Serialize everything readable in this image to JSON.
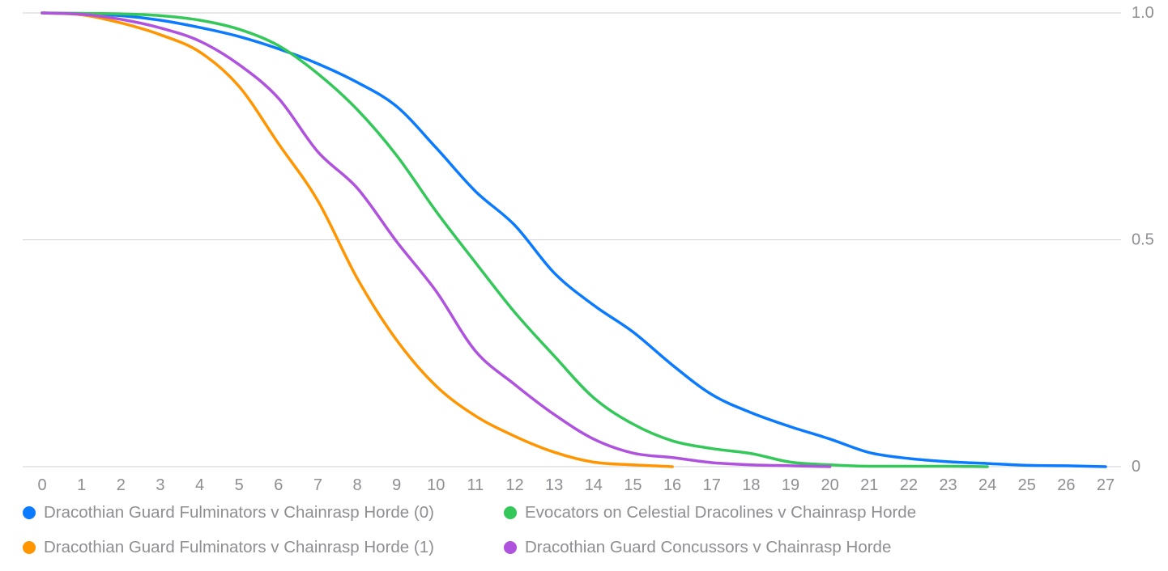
{
  "chart_data": {
    "type": "line",
    "title": "",
    "xlabel": "",
    "ylabel": "",
    "xlim": [
      0,
      27
    ],
    "ylim": [
      0,
      1
    ],
    "x_ticks": [
      "0",
      "1",
      "2",
      "3",
      "4",
      "5",
      "6",
      "7",
      "8",
      "9",
      "10",
      "11",
      "12",
      "13",
      "14",
      "15",
      "16",
      "17",
      "18",
      "19",
      "20",
      "21",
      "22",
      "23",
      "24",
      "25",
      "26",
      "27"
    ],
    "y_ticks": [
      {
        "value": 1.0,
        "label": "1.0"
      },
      {
        "value": 0.5,
        "label": "0.5"
      },
      {
        "value": 0.0,
        "label": "0"
      }
    ],
    "grid": "horizontal",
    "legend_position": "bottom",
    "series": [
      {
        "name": "Dracothian Guard Fulminators v Chainrasp Horde (0)",
        "color": "#0a7aff",
        "x": [
          0,
          1,
          2,
          3,
          4,
          5,
          6,
          7,
          8,
          9,
          10,
          11,
          12,
          13,
          14,
          15,
          16,
          17,
          18,
          19,
          20,
          21,
          22,
          23,
          24,
          25,
          26,
          27
        ],
        "y": [
          1.0,
          0.998,
          0.994,
          0.984,
          0.968,
          0.948,
          0.921,
          0.888,
          0.847,
          0.794,
          0.703,
          0.607,
          0.532,
          0.427,
          0.356,
          0.297,
          0.224,
          0.159,
          0.119,
          0.088,
          0.061,
          0.031,
          0.018,
          0.011,
          0.007,
          0.003,
          0.002,
          0.0
        ]
      },
      {
        "name": "Evocators on Celestial Dracolines v Chainrasp Horde",
        "color": "#34c759",
        "x": [
          0,
          1,
          2,
          3,
          4,
          5,
          6,
          7,
          8,
          9,
          10,
          11,
          12,
          13,
          14,
          15,
          16,
          17,
          18,
          19,
          20,
          21,
          22,
          23,
          24
        ],
        "y": [
          1.0,
          0.999,
          0.998,
          0.994,
          0.984,
          0.964,
          0.928,
          0.866,
          0.787,
          0.686,
          0.563,
          0.45,
          0.34,
          0.244,
          0.152,
          0.094,
          0.057,
          0.04,
          0.029,
          0.01,
          0.004,
          0.001,
          0.001,
          0.001,
          0.0
        ]
      },
      {
        "name": "Dracothian Guard Fulminators v Chainrasp Horde (1)",
        "color": "#ff9500",
        "x": [
          0,
          1,
          2,
          3,
          4,
          5,
          6,
          7,
          8,
          9,
          10,
          11,
          12,
          13,
          14,
          15,
          16
        ],
        "y": [
          1.0,
          0.996,
          0.978,
          0.952,
          0.914,
          0.838,
          0.712,
          0.586,
          0.415,
          0.279,
          0.178,
          0.112,
          0.067,
          0.032,
          0.01,
          0.004,
          0.0
        ]
      },
      {
        "name": "Dracothian Guard Concussors v Chainrasp Horde",
        "color": "#af52de",
        "x": [
          0,
          1,
          2,
          3,
          4,
          5,
          6,
          7,
          8,
          9,
          10,
          11,
          12,
          13,
          14,
          15,
          16,
          17,
          18,
          19,
          20
        ],
        "y": [
          1.0,
          0.997,
          0.986,
          0.967,
          0.938,
          0.886,
          0.812,
          0.694,
          0.614,
          0.496,
          0.387,
          0.255,
          0.181,
          0.115,
          0.061,
          0.03,
          0.02,
          0.009,
          0.004,
          0.002,
          0.0
        ]
      }
    ]
  }
}
